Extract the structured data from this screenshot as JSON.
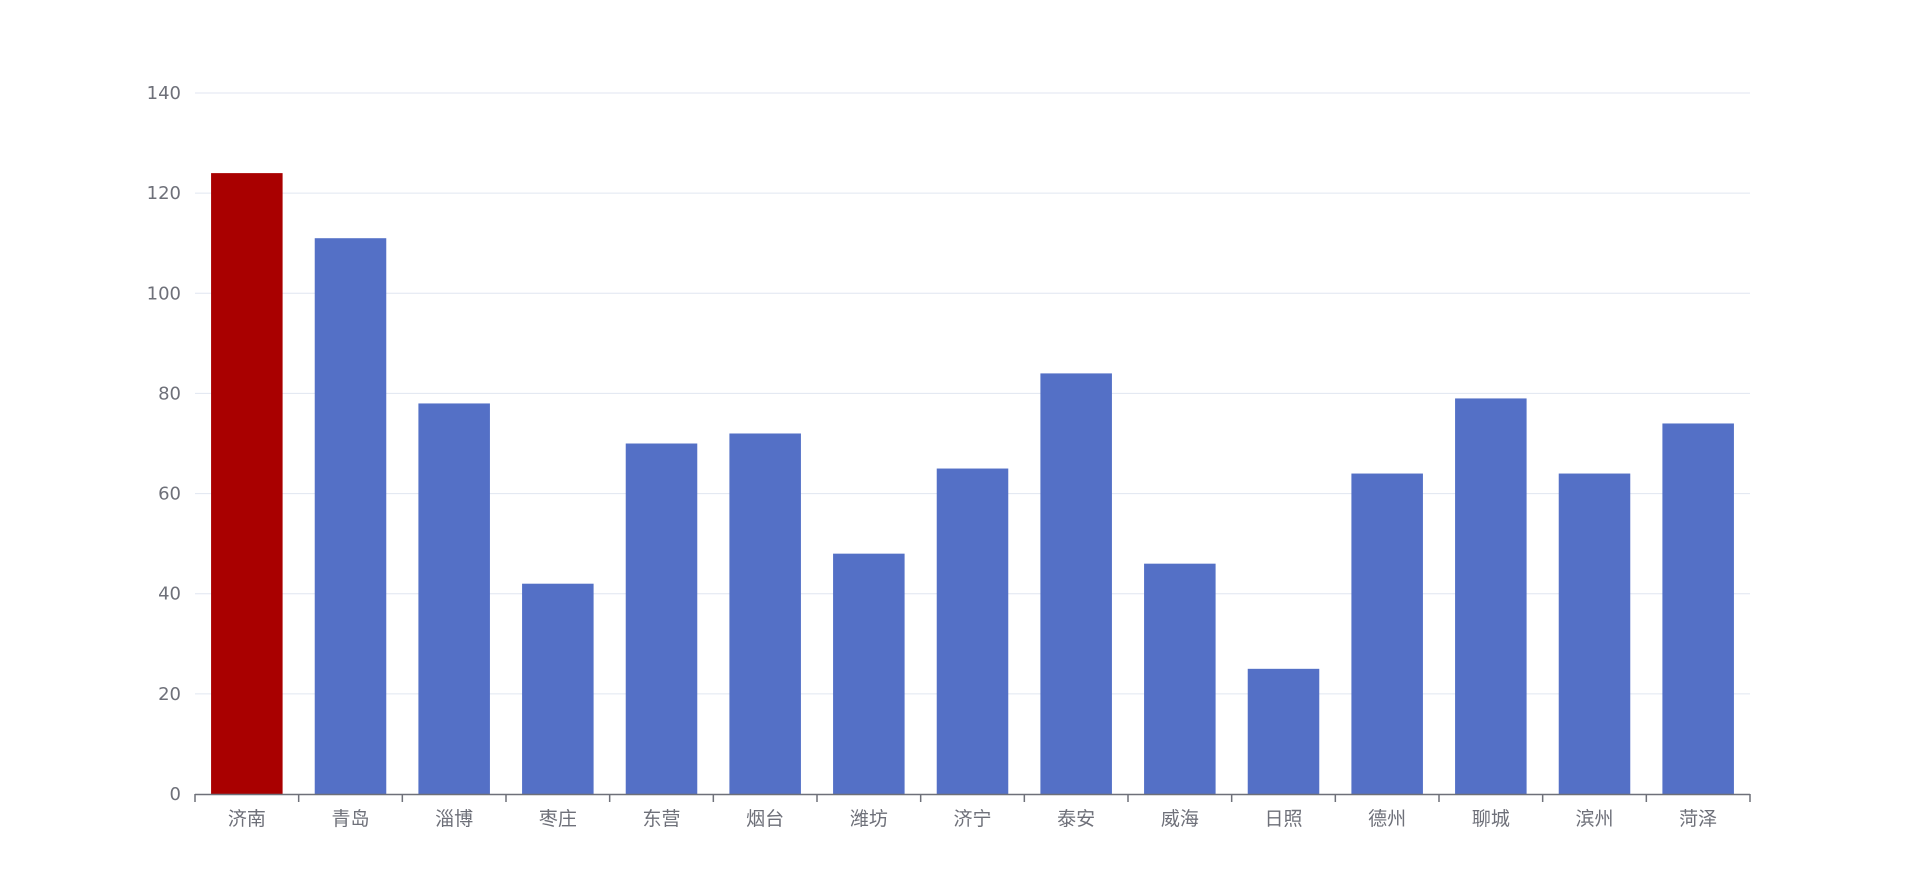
{
  "chart_data": {
    "type": "bar",
    "title": "",
    "xlabel": "",
    "ylabel": "",
    "categories": [
      "济南",
      "青岛",
      "淄博",
      "枣庄",
      "东营",
      "烟台",
      "潍坊",
      "济宁",
      "泰安",
      "威海",
      "日照",
      "德州",
      "聊城",
      "滨州",
      "菏泽"
    ],
    "values": [
      124,
      111,
      78,
      42,
      70,
      72,
      48,
      65,
      84,
      46,
      25,
      64,
      79,
      64,
      74
    ],
    "ylim": [
      0,
      140
    ],
    "yticks": [
      0,
      20,
      40,
      60,
      80,
      100,
      120,
      140
    ],
    "grid": "horizontal",
    "legend": "none",
    "highlight_category": "济南",
    "colors": {
      "bar": "#5470c6",
      "highlight": "#a90000",
      "grid": "#e0e6f1",
      "axis": "#6e7079",
      "text": "#6e7079"
    }
  }
}
